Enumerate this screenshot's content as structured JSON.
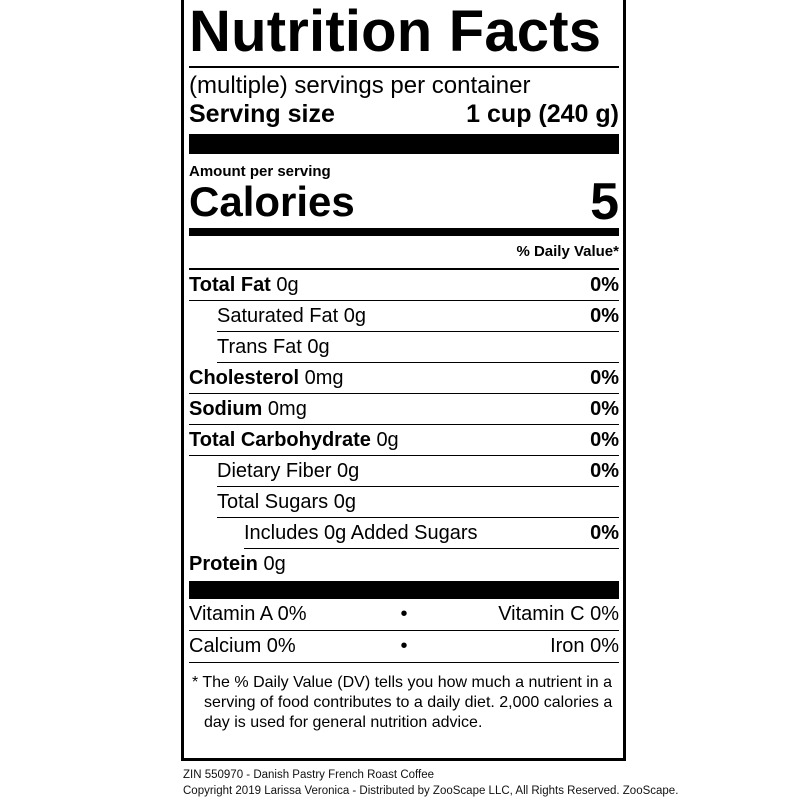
{
  "title": "Nutrition Facts",
  "servings_per_container": "(multiple) servings per container",
  "serving_size": {
    "label": "Serving size",
    "value": "1 cup (240 g)"
  },
  "amount_per_serving": "Amount per serving",
  "calories": {
    "label": "Calories",
    "value": "5"
  },
  "daily_value_header": "% Daily Value*",
  "nutrients": [
    {
      "name": "Total Fat",
      "amount": "0g",
      "dv": "0%"
    },
    {
      "name": "Saturated Fat",
      "amount": "0g",
      "dv": "0%"
    },
    {
      "name": "Trans Fat",
      "amount": "0g",
      "dv": ""
    },
    {
      "name": "Cholesterol",
      "amount": "0mg",
      "dv": "0%"
    },
    {
      "name": "Sodium",
      "amount": "0mg",
      "dv": "0%"
    },
    {
      "name": "Total Carbohydrate",
      "amount": "0g",
      "dv": "0%"
    },
    {
      "name": "Dietary Fiber",
      "amount": "0g",
      "dv": "0%"
    },
    {
      "name": "Total Sugars",
      "amount": "0g",
      "dv": ""
    },
    {
      "name": "Includes 0g Added Sugars",
      "amount": "",
      "dv": "0%"
    },
    {
      "name": "Protein",
      "amount": "0g",
      "dv": ""
    }
  ],
  "vitamins": [
    {
      "left": "Vitamin A 0%",
      "right": "Vitamin C 0%"
    },
    {
      "left": "Calcium 0%",
      "right": "Iron 0%"
    }
  ],
  "separator": "•",
  "footnote": "* The % Daily Value (DV) tells you how much a nutrient in a serving of food contributes to a daily diet. 2,000 calories a day is used for general nutrition advice.",
  "credits": {
    "line1": "ZIN 550970 - Danish Pastry French Roast Coffee",
    "line2": "Copyright 2019 Larissa Veronica - Distributed by ZooScape LLC, All Rights Reserved. ZooScape."
  }
}
